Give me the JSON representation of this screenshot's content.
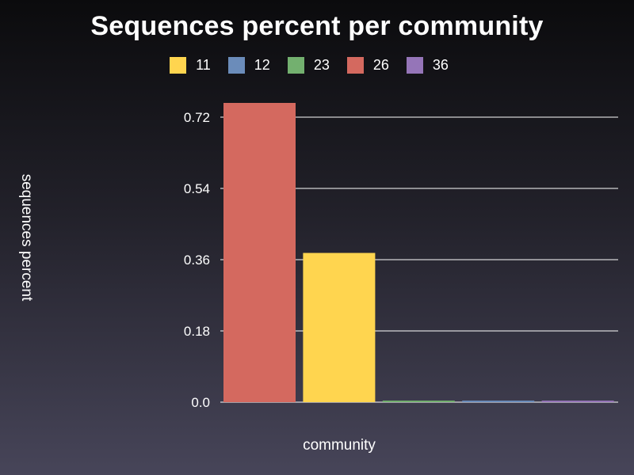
{
  "chart_data": {
    "type": "bar",
    "title": "Sequences percent per community",
    "xlabel": "community",
    "ylabel": "sequences percent",
    "ylim": [
      0,
      0.72
    ],
    "yticks": [
      "0.0",
      "0.18",
      "0.36",
      "0.54",
      "0.72"
    ],
    "grid": true,
    "legend_position": "top-center",
    "legend": [
      {
        "name": "11",
        "color": "#ffd54f"
      },
      {
        "name": "12",
        "color": "#6b8cba"
      },
      {
        "name": "23",
        "color": "#73b06f"
      },
      {
        "name": "26",
        "color": "#d4695f"
      },
      {
        "name": "36",
        "color": "#9575b8"
      }
    ],
    "bars": [
      {
        "series": "26",
        "value": 0.756,
        "color": "#d4695f"
      },
      {
        "series": "11",
        "value": 0.377,
        "color": "#ffd54f"
      },
      {
        "series": "23",
        "value": 0.002,
        "color": "#73b06f"
      },
      {
        "series": "12",
        "value": 0.002,
        "color": "#6b8cba"
      },
      {
        "series": "36",
        "value": 0.002,
        "color": "#9575b8"
      }
    ]
  }
}
